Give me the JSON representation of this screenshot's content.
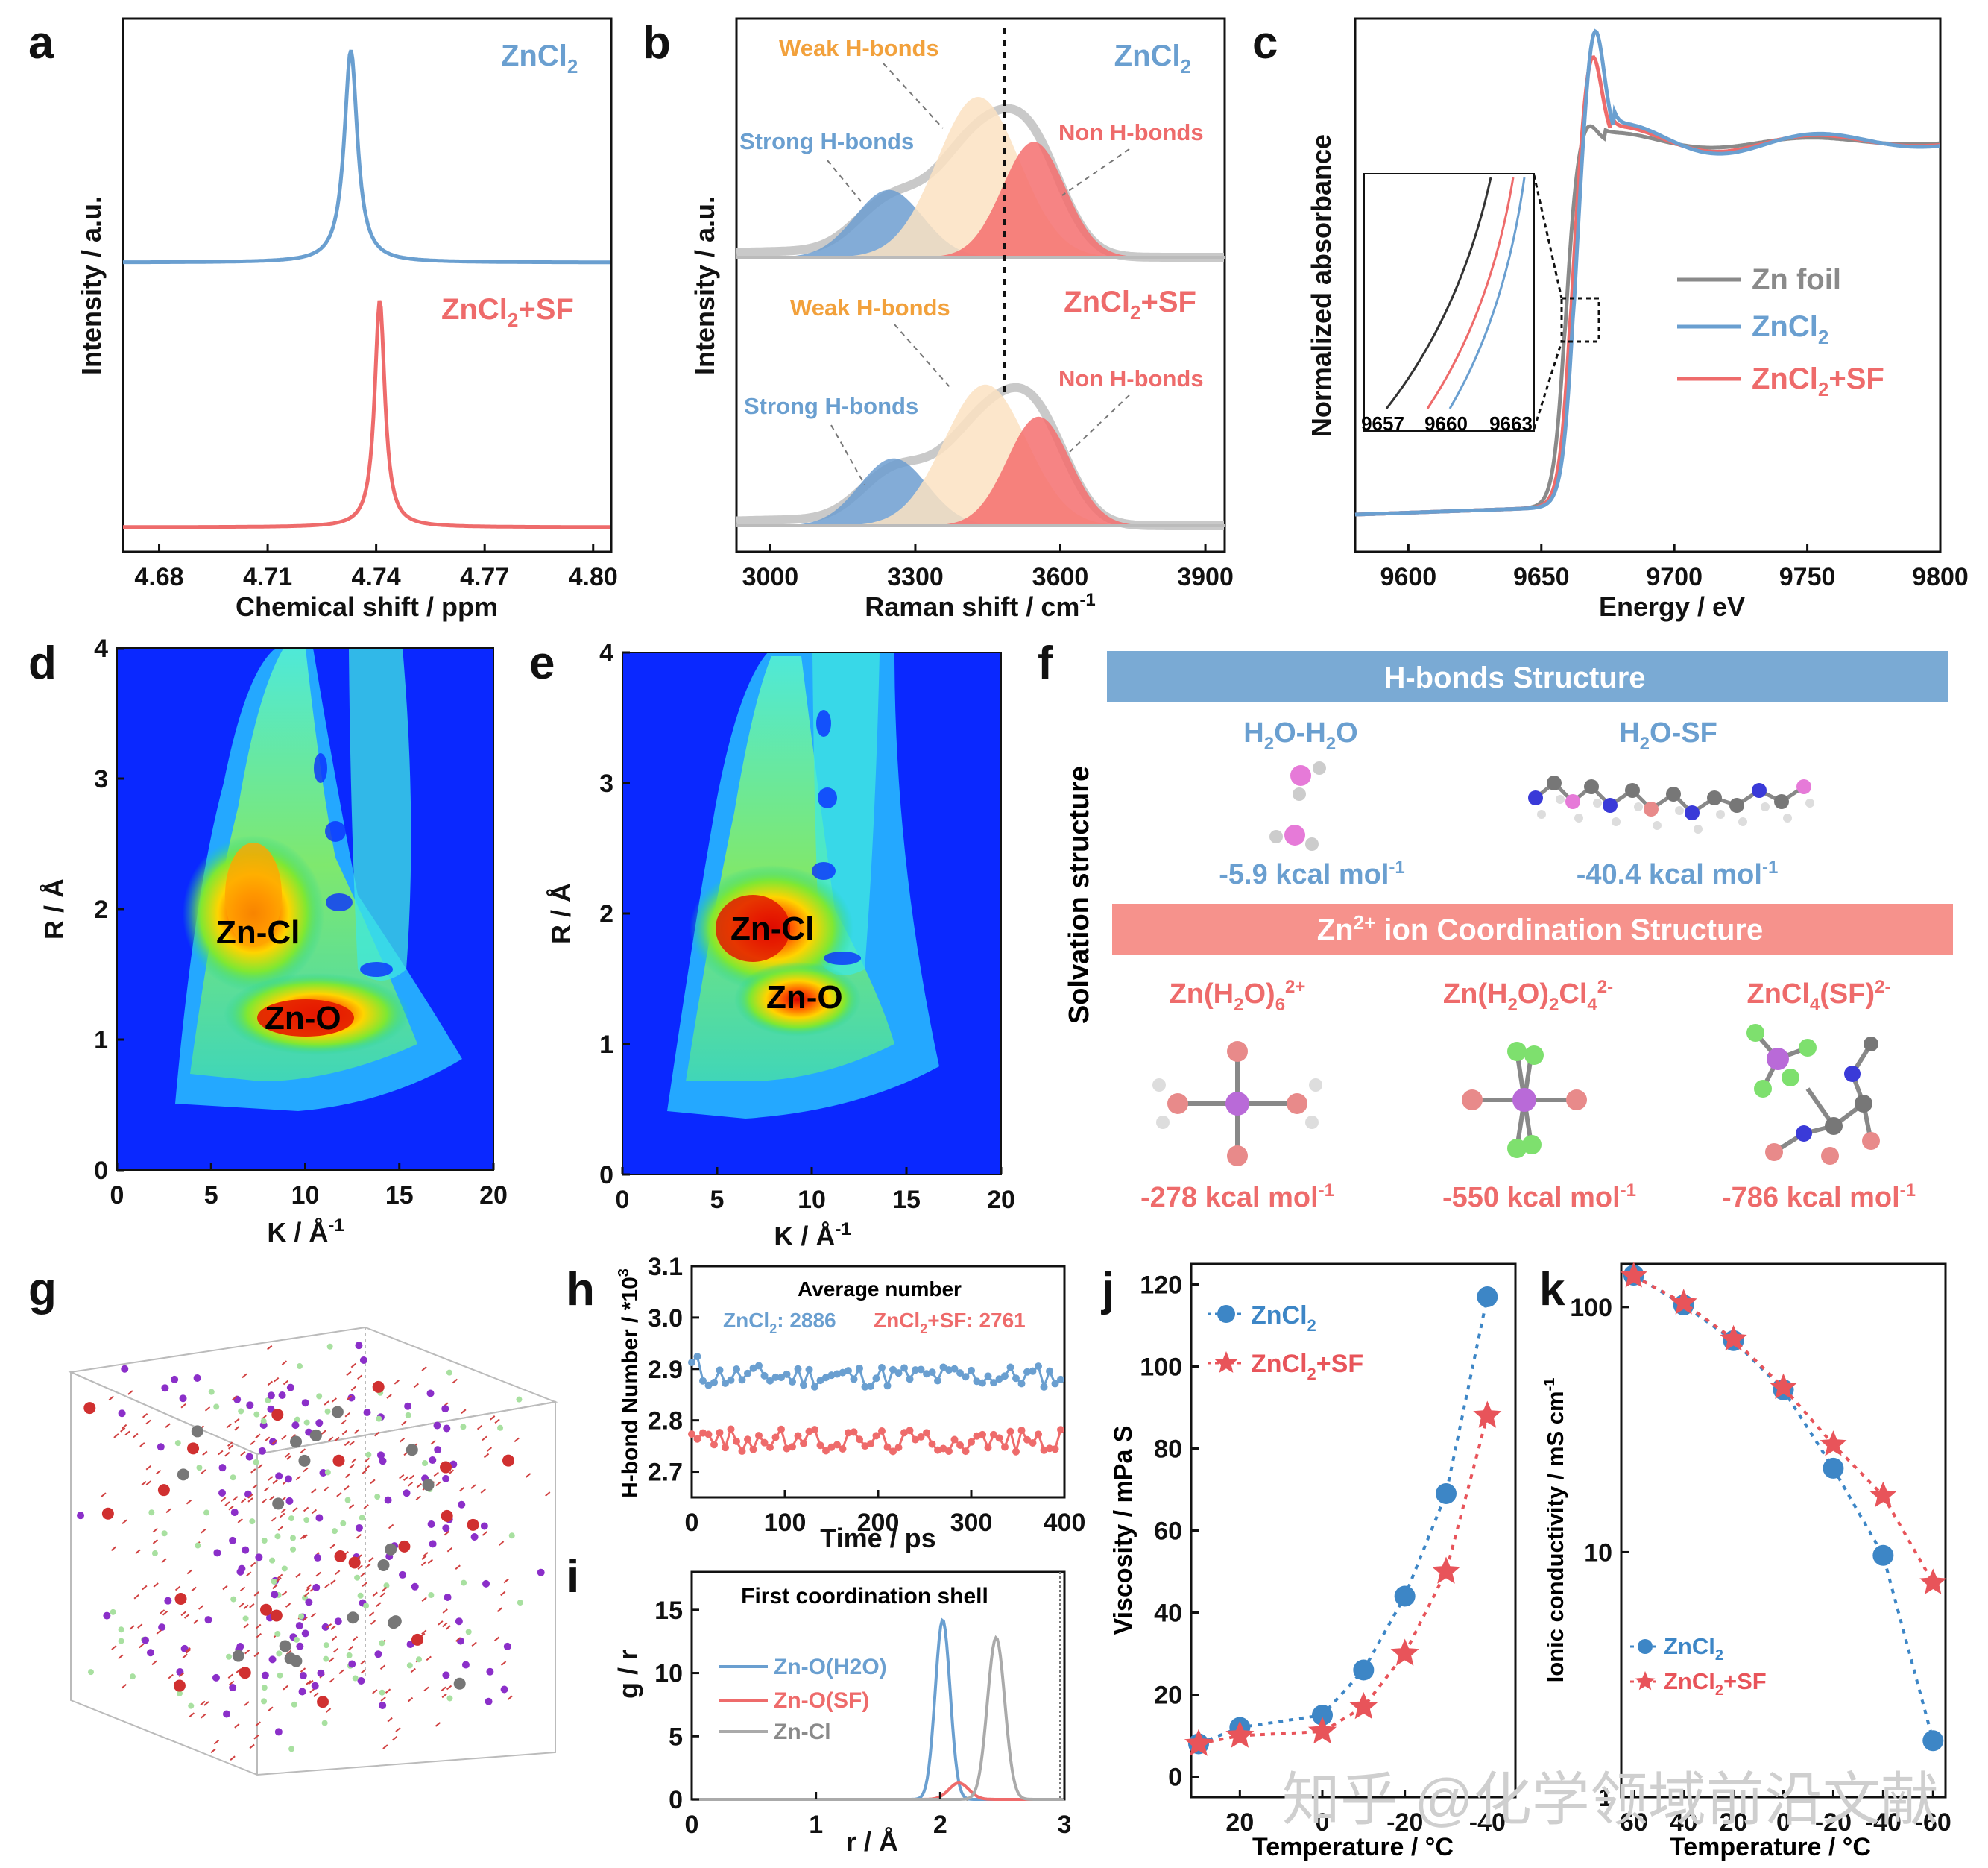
{
  "panels": {
    "a": {
      "label": "a",
      "ylabel": "Intensity / a.u.",
      "xlabel": "Chemical shift / ppm",
      "legend_top": "ZnCl2",
      "legend_bottom": "ZnCl2+SF"
    },
    "b": {
      "label": "b",
      "ylabel": "Intensity / a.u.",
      "xlabel": "Raman shift / cm-1",
      "top": {
        "title": "ZnCl2",
        "weak": "Weak H-bonds",
        "strong": "Strong H-bonds",
        "non": "Non H-bonds"
      },
      "bottom": {
        "title": "ZnCl2+SF",
        "weak": "Weak H-bonds",
        "strong": "Strong H-bonds",
        "non": "Non H-bonds"
      }
    },
    "c": {
      "label": "c",
      "ylabel": "Normalized absorbance",
      "xlabel": "Energy / eV",
      "legend": [
        "Zn foil",
        "ZnCl2",
        "ZnCl2+SF"
      ],
      "inset_ticks": [
        "9657",
        "9660",
        "9663"
      ]
    },
    "d": {
      "label": "d",
      "ylabel": "R / Å",
      "xlabel": "K / Å-1",
      "ann1": "Zn-Cl",
      "ann2": "Zn-O"
    },
    "e": {
      "label": "e",
      "ylabel": "R / Å",
      "xlabel": "K / Å-1",
      "ann1": "Zn-Cl",
      "ann2": "Zn-O"
    },
    "f": {
      "label": "f",
      "side": "Solvation structure",
      "hb_header": "H-bonds Structure",
      "zn_header": "Zn2+ ion Coordination Structure",
      "hb": [
        {
          "name": "H2O-H2O",
          "energy": "-5.9 kcal mol-1"
        },
        {
          "name": "H2O-SF",
          "energy": "-40.4 kcal mol-1"
        }
      ],
      "zn": [
        {
          "name": "Zn(H2O)6 2+",
          "energy": "-278 kcal mol-1"
        },
        {
          "name": "Zn(H2O)2Cl4 2-",
          "energy": "-550 kcal mol-1"
        },
        {
          "name": "ZnCl4(SF) 2-",
          "energy": "-786 kcal mol-1"
        }
      ]
    },
    "g": {
      "label": "g"
    },
    "h": {
      "label": "h",
      "ylabel": "H-bond Number / *10^3",
      "xlabel": "Time / ps",
      "title": "Average number",
      "leg1": "ZnCl2: 2886",
      "leg2": "ZnCl2+SF: 2761"
    },
    "i": {
      "label": "i",
      "ylabel": "g / r",
      "xlabel": "r / Å",
      "title": "First coordination shell",
      "legend": [
        "Zn-O(H2O)",
        "Zn-O(SF)",
        "Zn-Cl"
      ]
    },
    "j": {
      "label": "j",
      "ylabel": "Viscosity / mPa S",
      "xlabel": "Temperature / °C",
      "legend": [
        "ZnCl2",
        "ZnCl2+SF"
      ]
    },
    "k": {
      "label": "k",
      "ylabel": "Ionic conductivity / mS cm-1",
      "xlabel": "Temperature / °C",
      "legend": [
        "ZnCl2",
        "ZnCl2+SF"
      ]
    }
  },
  "watermark": "知乎 @化学领域前沿文献",
  "colors": {
    "blue": "#6a9fd0",
    "red": "#ee6b6b",
    "gray": "#8a8a8a",
    "orange": "#f2a13c",
    "dot_blue": "#3d86c6",
    "star_red": "#e8545a"
  },
  "chart_data": [
    {
      "id": "a",
      "type": "line",
      "xlim": [
        4.67,
        4.805
      ],
      "xticks": [
        4.68,
        4.71,
        4.74,
        4.77,
        4.8
      ],
      "series": [
        {
          "name": "ZnCl2",
          "peak_x": 4.733,
          "shape": "lorentzian"
        },
        {
          "name": "ZnCl2+SF",
          "peak_x": 4.741,
          "shape": "lorentzian"
        }
      ]
    },
    {
      "id": "b",
      "type": "line",
      "xlim": [
        2930,
        3940
      ],
      "xticks": [
        3000,
        3300,
        3600,
        3900
      ],
      "series": [
        {
          "name": "ZnCl2",
          "components": [
            {
              "label": "Strong H-bonds",
              "center": 3245,
              "height": 0.42
            },
            {
              "label": "Weak H-bonds",
              "center": 3430,
              "height": 1.0
            },
            {
              "label": "Non H-bonds",
              "center": 3545,
              "height": 0.72
            }
          ]
        },
        {
          "name": "ZnCl2+SF",
          "components": [
            {
              "label": "Strong H-bonds",
              "center": 3255,
              "height": 0.42
            },
            {
              "label": "Weak H-bonds",
              "center": 3445,
              "height": 0.88
            },
            {
              "label": "Non H-bonds",
              "center": 3555,
              "height": 0.68
            }
          ]
        }
      ],
      "dashed_line_x": 3510
    },
    {
      "id": "c",
      "type": "line",
      "xlim": [
        9580,
        9800
      ],
      "xticks": [
        9600,
        9650,
        9700,
        9750,
        9800
      ],
      "series": [
        {
          "name": "Zn foil",
          "edge": 9659
        },
        {
          "name": "ZnCl2",
          "edge": 9662
        },
        {
          "name": "ZnCl2+SF",
          "edge": 9661
        }
      ]
    },
    {
      "id": "d",
      "type": "heatmap",
      "xlim": [
        0,
        20
      ],
      "ylim": [
        0,
        4
      ],
      "xticks": [
        0,
        5,
        10,
        15,
        20
      ],
      "yticks": [
        0,
        1,
        2,
        3,
        4
      ],
      "hotspots": [
        {
          "label": "Zn-Cl",
          "k": 7.5,
          "r": 1.9
        },
        {
          "label": "Zn-O",
          "k": 10,
          "r": 1.2
        }
      ]
    },
    {
      "id": "e",
      "type": "heatmap",
      "xlim": [
        0,
        20
      ],
      "ylim": [
        0,
        4
      ],
      "xticks": [
        0,
        5,
        10,
        15,
        20
      ],
      "yticks": [
        0,
        1,
        2,
        3,
        4
      ],
      "hotspots": [
        {
          "label": "Zn-Cl",
          "k": 7,
          "r": 1.9
        },
        {
          "label": "Zn-O",
          "k": 9.5,
          "r": 1.4
        }
      ]
    },
    {
      "id": "h",
      "type": "line",
      "xlim": [
        0,
        400
      ],
      "ylim": [
        2.65,
        3.1
      ],
      "xticks": [
        0,
        100,
        200,
        300,
        400
      ],
      "yticks": [
        2.7,
        2.8,
        2.9,
        3.0,
        3.1
      ],
      "series": [
        {
          "name": "ZnCl2",
          "mean": 2.886
        },
        {
          "name": "ZnCl2+SF",
          "mean": 2.761
        }
      ]
    },
    {
      "id": "i",
      "type": "line",
      "xlim": [
        0,
        3
      ],
      "ylim": [
        0,
        18
      ],
      "xticks": [
        0,
        1,
        2,
        3
      ],
      "yticks": [
        0,
        5,
        10,
        15
      ],
      "series": [
        {
          "name": "Zn-O(H2O)",
          "peak_r": 2.02,
          "peak_g": 14.2
        },
        {
          "name": "Zn-O(SF)",
          "peak_r": 2.15,
          "peak_g": 1.3
        },
        {
          "name": "Zn-Cl",
          "peak_r": 2.45,
          "peak_g": 12.8
        }
      ]
    },
    {
      "id": "j",
      "type": "scatter",
      "xlim": [
        30,
        -45
      ],
      "ylim": [
        -5,
        125
      ],
      "xticks": [
        20,
        0,
        -20,
        -40
      ],
      "yticks": [
        0,
        20,
        40,
        60,
        80,
        100,
        120
      ],
      "series": [
        {
          "name": "ZnCl2",
          "x": [
            30,
            20,
            0,
            -10,
            -20,
            -30,
            -40
          ],
          "y": [
            8,
            12,
            15,
            26,
            44,
            69,
            117
          ]
        },
        {
          "name": "ZnCl2+SF",
          "x": [
            30,
            20,
            0,
            -10,
            -20,
            -30,
            -40
          ],
          "y": [
            8,
            10,
            11,
            17,
            30,
            50,
            88
          ]
        }
      ]
    },
    {
      "id": "k",
      "type": "scatter",
      "xlim": [
        65,
        -65
      ],
      "ylim_log": [
        1,
        150
      ],
      "xticks": [
        60,
        40,
        20,
        0,
        -20,
        -40,
        -60
      ],
      "yticks": [
        1,
        10,
        100
      ],
      "series": [
        {
          "name": "ZnCl2",
          "x": [
            60,
            40,
            20,
            0,
            -20,
            -40,
            -60
          ],
          "y": [
            135,
            102,
            73,
            46,
            22,
            9.7,
            1.7
          ]
        },
        {
          "name": "ZnCl2+SF",
          "x": [
            60,
            40,
            20,
            0,
            -20,
            -40,
            -60
          ],
          "y": [
            134,
            104,
            74,
            47,
            27.5,
            17,
            7.5
          ]
        }
      ]
    }
  ]
}
